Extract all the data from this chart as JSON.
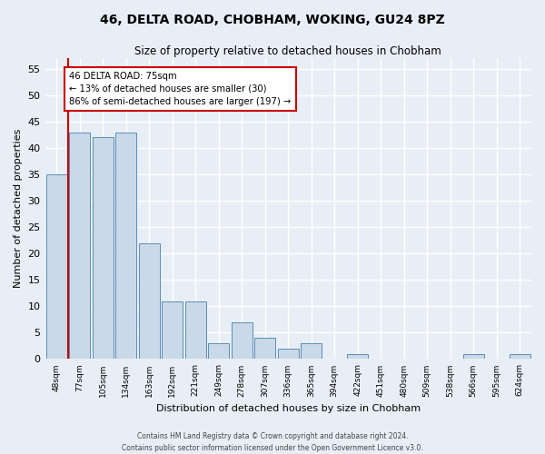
{
  "title": "46, DELTA ROAD, CHOBHAM, WOKING, GU24 8PZ",
  "subtitle": "Size of property relative to detached houses in Chobham",
  "xlabel": "Distribution of detached houses by size in Chobham",
  "ylabel": "Number of detached properties",
  "categories": [
    "48sqm",
    "77sqm",
    "105sqm",
    "134sqm",
    "163sqm",
    "192sqm",
    "221sqm",
    "249sqm",
    "278sqm",
    "307sqm",
    "336sqm",
    "365sqm",
    "394sqm",
    "422sqm",
    "451sqm",
    "480sqm",
    "509sqm",
    "538sqm",
    "566sqm",
    "595sqm",
    "624sqm"
  ],
  "values": [
    35,
    43,
    42,
    43,
    22,
    11,
    11,
    3,
    7,
    4,
    2,
    3,
    0,
    1,
    0,
    0,
    0,
    0,
    1,
    0,
    1
  ],
  "bar_color": "#c9d9e8",
  "bar_edge_color": "#5b8db8",
  "ylim": [
    0,
    57
  ],
  "yticks": [
    0,
    5,
    10,
    15,
    20,
    25,
    30,
    35,
    40,
    45,
    50,
    55
  ],
  "annotation_text": "46 DELTA ROAD: 75sqm\n← 13% of detached houses are smaller (30)\n86% of semi-detached houses are larger (197) →",
  "annotation_box_color": "#ffffff",
  "annotation_box_edge_color": "#cc0000",
  "vline_color": "#cc0000",
  "footer_line1": "Contains HM Land Registry data © Crown copyright and database right 2024.",
  "footer_line2": "Contains public sector information licensed under the Open Government Licence v3.0.",
  "background_color": "#e8eef5",
  "grid_color": "#ffffff"
}
